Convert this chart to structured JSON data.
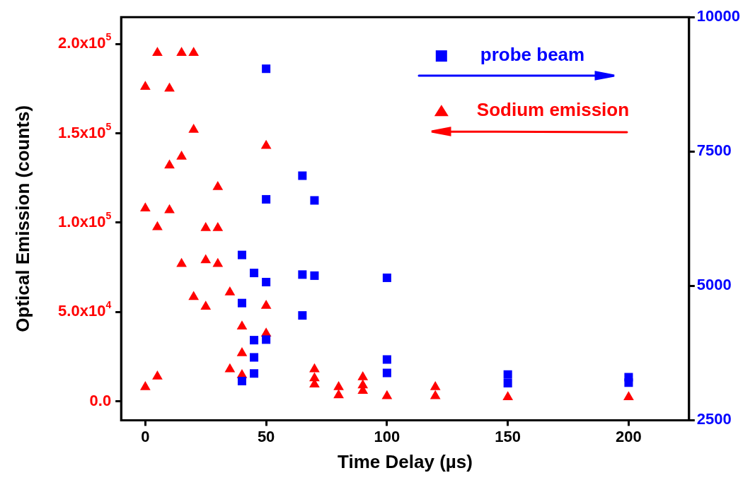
{
  "chart_data": {
    "type": "scatter",
    "xlabel": "Time Delay (µs)",
    "ylabel": "Optical Emission (counts)",
    "xlim": [
      -10,
      225
    ],
    "xticks": [
      0,
      50,
      100,
      150,
      200
    ],
    "ylim": [
      -10500,
      215000
    ],
    "yticks": [
      {
        "value": 0,
        "label": "0.0"
      },
      {
        "value": 50000,
        "label": "5.0x10$^{4}$"
      },
      {
        "value": 100000,
        "label": "1.0x10$^{5}$"
      },
      {
        "value": 150000,
        "label": "1.5x10$^{5}$"
      },
      {
        "value": 200000,
        "label": "2.0x10$^{5}$"
      }
    ],
    "y2lim": [
      2500,
      10000
    ],
    "y2ticks": [
      2500,
      5000,
      7500,
      10000
    ],
    "grid": false,
    "legend": "top right",
    "series": [
      {
        "name": "probe beam",
        "color": "#0000ff",
        "marker": "square",
        "axis": "y2",
        "x": [
          50,
          65,
          50,
          70,
          40,
          45,
          50,
          65,
          70,
          40,
          65,
          45,
          50,
          45,
          45,
          40,
          100,
          100,
          100,
          150,
          150,
          200,
          200
        ],
        "values": [
          9040,
          7050,
          6610,
          6590,
          5575,
          5240,
          5070,
          5210,
          5190,
          4680,
          4450,
          3990,
          4000,
          3670,
          3370,
          3230,
          5150,
          3630,
          3380,
          3350,
          3190,
          3300,
          3200
        ]
      },
      {
        "name": "Sodium emission",
        "color": "#ff0000",
        "marker": "triangle",
        "x": [
          5,
          15,
          20,
          0,
          10,
          20,
          50,
          15,
          10,
          30,
          0,
          10,
          5,
          25,
          30,
          15,
          25,
          30,
          20,
          35,
          25,
          50,
          40,
          50,
          40,
          35,
          40,
          5,
          0,
          70,
          70,
          70,
          80,
          80,
          90,
          90,
          90,
          100,
          120,
          120,
          150,
          200
        ],
        "values": [
          195000,
          195000,
          195000,
          176000,
          175000,
          152000,
          143000,
          137000,
          132000,
          120000,
          108000,
          107000,
          97500,
          97000,
          97000,
          77000,
          79000,
          77000,
          58500,
          61000,
          53000,
          53500,
          42000,
          38000,
          27000,
          18000,
          14800,
          14000,
          8000,
          18000,
          13000,
          9500,
          8000,
          3500,
          13600,
          9000,
          6000,
          3000,
          8000,
          3000,
          2400,
          2400
        ]
      }
    ]
  }
}
